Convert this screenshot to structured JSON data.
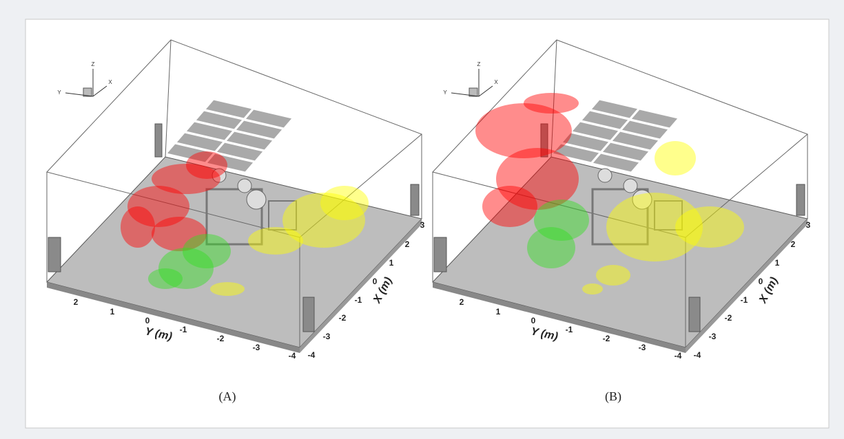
{
  "figure": {
    "panels": [
      {
        "caption": "(A)",
        "y_axis_label": "Y (m)",
        "x_axis_label": "X (m)",
        "y_ticks": [
          "2",
          "1",
          "0",
          "-1",
          "-2",
          "-3",
          "-4"
        ],
        "x_ticks": [
          "-4",
          "-3",
          "-2",
          "-1",
          "0",
          "1",
          "2",
          "3"
        ],
        "triad": [
          "Z",
          "Y",
          "X"
        ]
      },
      {
        "caption": "(B)",
        "y_axis_label": "Y (m)",
        "x_axis_label": "X (m)",
        "y_ticks": [
          "2",
          "1",
          "0",
          "-1",
          "-2",
          "-3",
          "-4"
        ],
        "x_ticks": [
          "-4",
          "-3",
          "-2",
          "-1",
          "0",
          "1",
          "2",
          "3"
        ],
        "triad": [
          "Z",
          "Y",
          "X"
        ]
      }
    ]
  }
}
